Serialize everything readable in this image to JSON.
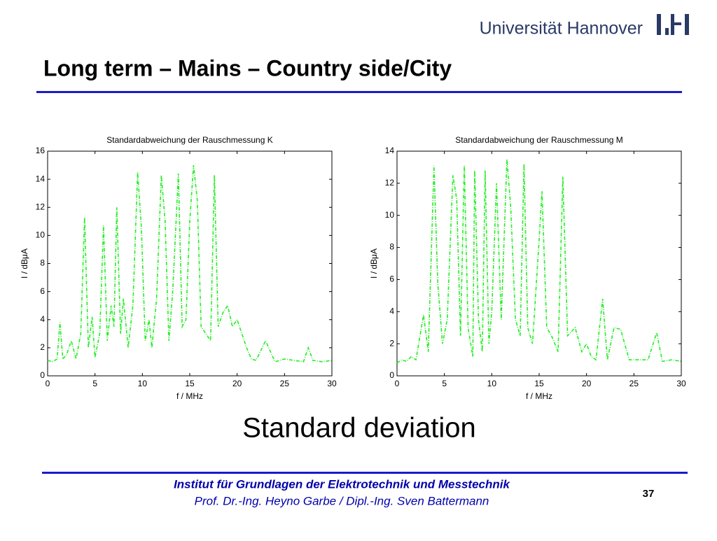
{
  "header": {
    "university": "Universität Hannover",
    "title": "Long term – Mains – Country side/City"
  },
  "caption": "Standard deviation",
  "footer": {
    "institute": "Institut für Grundlagen der Elektrotechnik und Messtechnik",
    "authors": "Prof. Dr.-Ing. Heyno Garbe / Dipl.-Ing. Sven Battermann",
    "page": "37"
  },
  "chart_data": [
    {
      "type": "line",
      "title": "Standardabweichung der Rauschmessung K",
      "x_label": "f / MHz",
      "y_label": "I / dBμA",
      "xlim": [
        0,
        30
      ],
      "xticks": [
        0,
        5,
        10,
        15,
        20,
        25,
        30
      ],
      "ylim": [
        0,
        16
      ],
      "yticks": [
        0,
        2,
        4,
        6,
        8,
        10,
        12,
        14,
        16
      ],
      "grid": false,
      "x": [
        0,
        0.5,
        1,
        1.3,
        1.6,
        2,
        2.5,
        3,
        3.5,
        3.9,
        4.3,
        4.7,
        5,
        5.5,
        5.9,
        6.3,
        6.7,
        7,
        7.3,
        7.7,
        8,
        8.5,
        9,
        9.5,
        9.9,
        10.3,
        10.7,
        11,
        11.5,
        12,
        12.4,
        12.8,
        13.2,
        13.8,
        14.2,
        14.6,
        15,
        15.4,
        15.8,
        16.2,
        16.7,
        17.2,
        17.6,
        18,
        18.5,
        19,
        19.5,
        20,
        20.5,
        21,
        21.5,
        22,
        23,
        24,
        25,
        26,
        27,
        27.5,
        28,
        29,
        30
      ],
      "series": [
        {
          "color": "#22ee22",
          "values": [
            1.1,
            1.0,
            1.2,
            3.8,
            1.2,
            1.5,
            2.5,
            1.2,
            3.0,
            11.3,
            2.0,
            4.2,
            1.3,
            3.0,
            10.7,
            2.5,
            5.0,
            3.5,
            12.0,
            3.0,
            5.5,
            2.0,
            5.0,
            14.5,
            10.5,
            2.5,
            4.0,
            2.0,
            5.5,
            14.3,
            11.0,
            2.5,
            6.0,
            14.4,
            3.5,
            4.0,
            11.0,
            15.0,
            12.5,
            3.5,
            3.0,
            2.5,
            14.3,
            3.5,
            4.5,
            5.0,
            3.5,
            4.0,
            3.0,
            2.0,
            1.2,
            1.1,
            2.5,
            1.0,
            1.2,
            1.1,
            1.0,
            2.0,
            1.1,
            1.0,
            1.1
          ]
        }
      ]
    },
    {
      "type": "line",
      "title": "Standardabweichung der Rauschmessung M",
      "x_label": "f / MHz",
      "y_label": "I / dBμA",
      "xlim": [
        0,
        30
      ],
      "xticks": [
        0,
        5,
        10,
        15,
        20,
        25,
        30
      ],
      "ylim": [
        0,
        14
      ],
      "yticks": [
        0,
        2,
        4,
        6,
        8,
        10,
        12,
        14
      ],
      "grid": false,
      "x": [
        0,
        0.5,
        1,
        1.5,
        2,
        2.8,
        3.3,
        3.9,
        4.3,
        4.8,
        5.3,
        5.9,
        6.3,
        6.7,
        7.1,
        7.5,
        8,
        8.2,
        8.6,
        9,
        9.3,
        9.7,
        10,
        10.5,
        11,
        11.6,
        12,
        12.5,
        13,
        13.4,
        13.8,
        14.3,
        15,
        15.3,
        15.8,
        16.3,
        17,
        17.5,
        18,
        18.8,
        19.5,
        20,
        20.5,
        21,
        21.7,
        22.2,
        22.9,
        23.6,
        24.5,
        25.5,
        26.5,
        27.4,
        28,
        29,
        30
      ],
      "series": [
        {
          "color": "#22ee22",
          "values": [
            0.8,
            1.0,
            0.9,
            1.2,
            1.0,
            3.8,
            1.5,
            13.1,
            5.8,
            2.0,
            3.5,
            12.5,
            11.0,
            2.5,
            13.1,
            3.0,
            1.2,
            12.8,
            3.5,
            1.5,
            12.8,
            2.0,
            4.0,
            12.0,
            3.5,
            13.5,
            10.5,
            3.5,
            2.5,
            13.2,
            3.0,
            2.0,
            8.5,
            11.5,
            3.0,
            2.5,
            1.5,
            12.4,
            2.5,
            3.0,
            1.5,
            2.0,
            1.2,
            1.0,
            4.8,
            1.0,
            3.0,
            2.9,
            1.0,
            1.0,
            1.0,
            2.7,
            0.9,
            1.0,
            0.9
          ]
        }
      ]
    }
  ]
}
